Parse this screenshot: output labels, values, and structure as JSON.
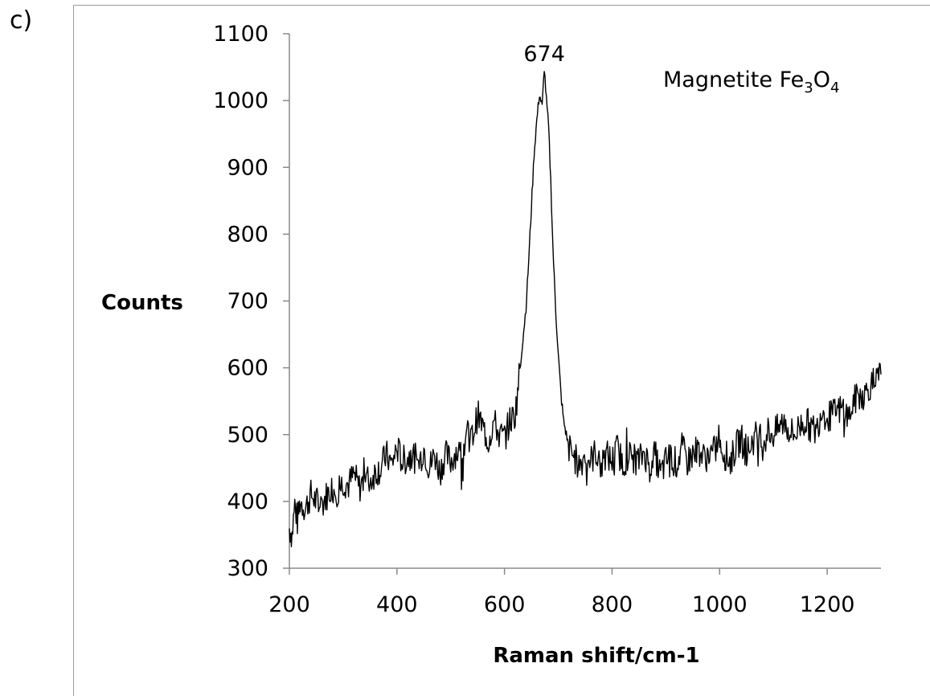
{
  "panel_label": "c)",
  "chart_data": {
    "type": "line",
    "title": "",
    "xlabel": "Raman shift/cm-1",
    "ylabel": "Counts",
    "xlim": [
      200,
      1300
    ],
    "ylim": [
      300,
      1100
    ],
    "xticks": [
      200,
      400,
      600,
      800,
      1000,
      1200
    ],
    "yticks": [
      300,
      400,
      500,
      600,
      700,
      800,
      900,
      1000,
      1100
    ],
    "grid": false,
    "legend": "none",
    "annotations": [
      {
        "text": "674",
        "x": 674
      },
      {
        "text": "Magnetite Fe",
        "sub1": "3",
        "mid": "O",
        "sub2": "4"
      }
    ],
    "series": [
      {
        "color": "#000000",
        "x": [
          200,
          205,
          210,
          215,
          220,
          230,
          240,
          250,
          260,
          270,
          280,
          290,
          300,
          310,
          320,
          330,
          340,
          350,
          360,
          370,
          380,
          390,
          400,
          410,
          420,
          430,
          440,
          450,
          460,
          470,
          480,
          490,
          500,
          510,
          520,
          530,
          540,
          550,
          560,
          570,
          580,
          590,
          600,
          610,
          620,
          630,
          640,
          645,
          650,
          655,
          660,
          665,
          670,
          674,
          678,
          682,
          686,
          690,
          695,
          700,
          705,
          710,
          715,
          720,
          730,
          740,
          750,
          760,
          770,
          780,
          790,
          800,
          810,
          820,
          830,
          840,
          850,
          860,
          870,
          880,
          890,
          900,
          910,
          920,
          930,
          940,
          950,
          960,
          970,
          980,
          990,
          1000,
          1010,
          1020,
          1030,
          1040,
          1050,
          1060,
          1070,
          1080,
          1090,
          1100,
          1110,
          1120,
          1130,
          1140,
          1150,
          1160,
          1170,
          1180,
          1190,
          1200,
          1210,
          1220,
          1230,
          1240,
          1250,
          1260,
          1270,
          1280,
          1290,
          1300
        ],
        "y": [
          360,
          350,
          395,
          370,
          400,
          390,
          410,
          400,
          395,
          410,
          420,
          415,
          430,
          425,
          440,
          420,
          435,
          430,
          445,
          450,
          470,
          455,
          480,
          460,
          465,
          470,
          455,
          480,
          450,
          470,
          445,
          470,
          460,
          475,
          470,
          500,
          495,
          530,
          510,
          490,
          520,
          500,
          495,
          520,
          530,
          610,
          690,
          760,
          840,
          920,
          970,
          1010,
          990,
          1050,
          1000,
          960,
          880,
          780,
          690,
          620,
          560,
          520,
          500,
          480,
          465,
          455,
          470,
          460,
          475,
          450,
          470,
          460,
          480,
          455,
          470,
          465,
          460,
          475,
          450,
          470,
          440,
          460,
          470,
          455,
          480,
          460,
          470,
          480,
          465,
          470,
          475,
          490,
          470,
          460,
          480,
          495,
          470,
          490,
          500,
          485,
          505,
          500,
          510,
          520,
          505,
          500,
          515,
          520,
          510,
          505,
          540,
          525,
          530,
          535,
          540,
          525,
          550,
          560,
          560,
          575,
          575,
          590
        ]
      }
    ]
  }
}
